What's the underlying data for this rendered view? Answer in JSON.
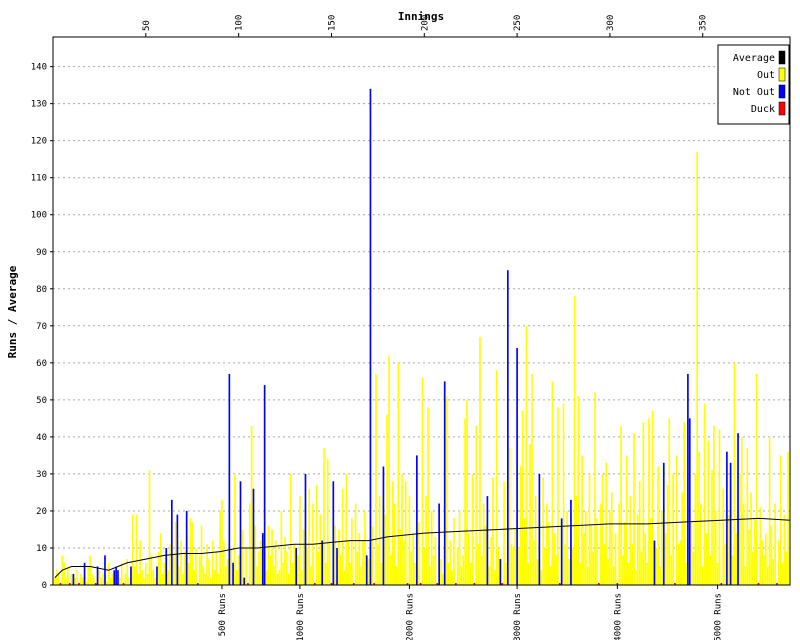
{
  "chart_data": {
    "type": "bar",
    "title": "Innings",
    "y_label": "Runs / Average",
    "xlim": [
      0,
      397
    ],
    "ylim": [
      0,
      148
    ],
    "xticks": [
      50,
      100,
      150,
      200,
      250,
      300,
      350
    ],
    "x2ticks": [
      {
        "value": 91,
        "label": "500 Runs"
      },
      {
        "value": 133,
        "label": "1000 Runs"
      },
      {
        "value": 192,
        "label": "2000 Runs"
      },
      {
        "value": 250,
        "label": "3000 Runs"
      },
      {
        "value": 304,
        "label": "4000 Runs"
      },
      {
        "value": 358,
        "label": "5000 Runs"
      }
    ],
    "yticks": [
      0,
      10,
      20,
      30,
      40,
      50,
      60,
      70,
      80,
      90,
      100,
      110,
      120,
      130,
      140
    ],
    "grid": true,
    "legend": "top-right",
    "series": [
      {
        "name": "Average",
        "color": "#000000",
        "kind": "line",
        "x": [
          1,
          5,
          10,
          20,
          30,
          35,
          40,
          50,
          60,
          70,
          80,
          90,
          100,
          110,
          120,
          130,
          140,
          150,
          160,
          170,
          180,
          190,
          200,
          220,
          240,
          260,
          280,
          300,
          320,
          340,
          360,
          380,
          397
        ],
        "values": [
          2,
          4,
          5,
          5,
          4,
          5,
          6,
          7,
          8,
          8.5,
          8.5,
          9,
          10,
          10,
          10.5,
          11,
          11,
          11.5,
          12,
          12,
          13,
          13.5,
          14,
          14.5,
          15,
          15.5,
          16,
          16.5,
          16.5,
          17,
          17.5,
          18,
          17.5
        ]
      },
      {
        "name": "Out",
        "color": "#ffff00",
        "kind": "bar",
        "x": [
          1,
          2,
          3,
          5,
          6,
          7,
          8,
          10,
          12,
          13,
          15,
          16,
          18,
          19,
          20,
          21,
          22,
          25,
          26,
          27,
          29,
          30,
          31,
          32,
          36,
          37,
          39,
          40,
          41,
          43,
          44,
          45,
          46,
          47,
          48,
          49,
          50,
          51,
          52,
          53,
          54,
          55,
          57,
          58,
          59,
          60,
          62,
          63,
          65,
          66,
          68,
          69,
          70,
          71,
          73,
          74,
          75,
          76,
          77,
          79,
          80,
          81,
          82,
          83,
          84,
          85,
          86,
          87,
          88,
          89,
          90,
          91,
          92,
          93,
          94,
          96,
          98,
          99,
          100,
          102,
          104,
          106,
          107,
          109,
          110,
          111,
          112,
          115,
          116,
          117,
          118,
          119,
          120,
          121,
          122,
          123,
          124,
          125,
          126,
          127,
          128,
          129,
          130,
          132,
          133,
          134,
          135,
          137,
          138,
          139,
          140,
          142,
          143,
          144,
          146,
          147,
          148,
          149,
          152,
          154,
          155,
          156,
          157,
          158,
          159,
          160,
          161,
          163,
          164,
          165,
          166,
          167,
          168,
          170,
          172,
          174,
          175,
          176,
          177,
          179,
          180,
          181,
          182,
          183,
          184,
          185,
          186,
          187,
          188,
          189,
          190,
          192,
          193,
          194,
          195,
          197,
          199,
          200,
          201,
          202,
          203,
          204,
          205,
          206,
          209,
          210,
          212,
          213,
          214,
          215,
          216,
          218,
          219,
          220,
          221,
          222,
          223,
          224,
          225,
          226,
          228,
          229,
          230,
          231,
          232,
          233,
          235,
          236,
          237,
          238,
          239,
          240,
          243,
          244,
          246,
          247,
          248,
          249,
          251,
          252,
          253,
          254,
          255,
          256,
          257,
          258,
          259,
          260,
          261,
          263,
          264,
          265,
          266,
          267,
          268,
          269,
          270,
          271,
          272,
          275,
          276,
          277,
          278,
          280,
          281,
          282,
          283,
          284,
          285,
          286,
          287,
          288,
          289,
          290,
          291,
          292,
          293,
          295,
          296,
          297,
          298,
          299,
          300,
          301,
          302,
          303,
          305,
          306,
          307,
          308,
          309,
          310,
          311,
          312,
          313,
          314,
          315,
          316,
          317,
          318,
          319,
          320,
          321,
          322,
          323,
          325,
          326,
          327,
          328,
          330,
          331,
          332,
          333,
          334,
          336,
          337,
          338,
          339,
          340,
          341,
          344,
          345,
          346,
          347,
          348,
          349,
          350,
          351,
          352,
          353,
          354,
          355,
          356,
          357,
          358,
          359,
          361,
          362,
          364,
          366,
          367,
          368,
          370,
          371,
          372,
          373,
          374,
          375,
          376,
          377,
          378,
          379,
          381,
          382,
          383,
          384,
          385,
          386,
          387,
          388,
          389,
          391,
          392,
          393,
          394,
          395,
          396
        ],
        "values": [
          2,
          4,
          3,
          8,
          6,
          2,
          5,
          3,
          2,
          4,
          3,
          2,
          1,
          5,
          8,
          3,
          2,
          4,
          2,
          3,
          1,
          6,
          2,
          3,
          2,
          6,
          3,
          7,
          2,
          19,
          5,
          19,
          3,
          12,
          4,
          2,
          6,
          3,
          31,
          8,
          4,
          2,
          9,
          14,
          3,
          6,
          4,
          11,
          8,
          17,
          5,
          12,
          3,
          9,
          6,
          18,
          17,
          4,
          10,
          8,
          16,
          5,
          3,
          11,
          7,
          2,
          12,
          4,
          9,
          3,
          20,
          23,
          12,
          5,
          7,
          10,
          30,
          4,
          8,
          15,
          10,
          22,
          43,
          16,
          5,
          9,
          12,
          4,
          16,
          8,
          15,
          5,
          12,
          3,
          4,
          20,
          6,
          13,
          9,
          3,
          30,
          6,
          11,
          8,
          24,
          4,
          15,
          10,
          26,
          5,
          22,
          27,
          9,
          19,
          37,
          6,
          34,
          12,
          16,
          15,
          8,
          26,
          4,
          30,
          12,
          6,
          18,
          22,
          9,
          14,
          5,
          12,
          20,
          7,
          16,
          57,
          11,
          24,
          6,
          19,
          46,
          62,
          8,
          28,
          22,
          5,
          60,
          15,
          30,
          12,
          28,
          24,
          9,
          14,
          6,
          17,
          56,
          10,
          24,
          48,
          5,
          20,
          8,
          13,
          7,
          3,
          51,
          6,
          12,
          4,
          18,
          10,
          20,
          5,
          8,
          45,
          50,
          14,
          6,
          30,
          43,
          11,
          67,
          8,
          22,
          16,
          5,
          13,
          29,
          4,
          58,
          10,
          28,
          6,
          37,
          11,
          10,
          15,
          10,
          32,
          47,
          18,
          70,
          6,
          38,
          57,
          12,
          24,
          7,
          4,
          29,
          10,
          22,
          17,
          5,
          55,
          14,
          8,
          48,
          49,
          11,
          20,
          7,
          10,
          78,
          24,
          51,
          6,
          35,
          14,
          20,
          5,
          30,
          16,
          9,
          52,
          18,
          22,
          30,
          11,
          33,
          7,
          20,
          25,
          5,
          14,
          22,
          43,
          8,
          17,
          35,
          6,
          24,
          11,
          41,
          4,
          19,
          28,
          9,
          44,
          14,
          6,
          45,
          18,
          47,
          10,
          32,
          5,
          20,
          14,
          27,
          45,
          8,
          30,
          35,
          11,
          12,
          25,
          44,
          6,
          17,
          9,
          30,
          117,
          36,
          22,
          5,
          49,
          14,
          39,
          8,
          31,
          43,
          20,
          6,
          42,
          26,
          11,
          19,
          8,
          60,
          14,
          30,
          40,
          22,
          5,
          37,
          15,
          25,
          9,
          18,
          57,
          21,
          12,
          8,
          14,
          5,
          40,
          16,
          7,
          22,
          12,
          35,
          6,
          19,
          9,
          36
        ]
      },
      {
        "name": "Not Out",
        "color": "#0000ff",
        "kind": "bar",
        "x": [
          11,
          17,
          24,
          28,
          33,
          34,
          35,
          42,
          56,
          61,
          64,
          67,
          72,
          95,
          97,
          101,
          103,
          108,
          113,
          114,
          131,
          136,
          145,
          151,
          153,
          169,
          171,
          178,
          196,
          208,
          211,
          234,
          241,
          245,
          250,
          262,
          274,
          279,
          324,
          329,
          342,
          343,
          363,
          365,
          369
        ],
        "values": [
          3,
          6,
          5,
          8,
          4,
          5,
          4,
          5,
          5,
          10,
          23,
          19,
          20,
          57,
          6,
          28,
          2,
          26,
          14,
          54,
          10,
          30,
          12,
          28,
          10,
          8,
          134,
          32,
          35,
          22,
          55,
          24,
          7,
          85,
          64,
          30,
          18,
          23,
          12,
          33,
          57,
          45,
          36,
          33,
          41
        ]
      },
      {
        "name": "Duck",
        "color": "#ff0000",
        "kind": "bar",
        "x": [
          4,
          9,
          14,
          23,
          38,
          78,
          105,
          141,
          150,
          162,
          173,
          191,
          198,
          207,
          217,
          227,
          242,
          273,
          294,
          304,
          335,
          360,
          380,
          390
        ],
        "values": [
          0,
          0,
          0,
          0,
          0,
          0,
          0,
          0,
          0,
          0,
          0,
          0,
          0,
          0,
          0,
          0,
          0,
          0,
          0,
          0,
          0,
          0,
          0,
          0
        ]
      }
    ]
  }
}
